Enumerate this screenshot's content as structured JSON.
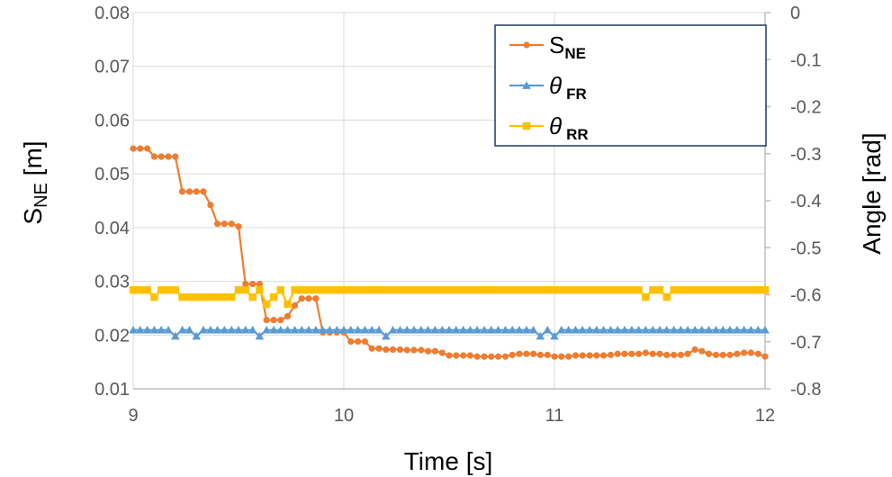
{
  "chart_data": {
    "type": "line",
    "xlabel": "Time [s]",
    "ylabel_left_main": "S",
    "ylabel_left_sub": "NE",
    "ylabel_left_unit": " [m]",
    "ylabel_right": "Angle [rad]",
    "xlim": [
      9,
      12
    ],
    "ylim_left": [
      0.01,
      0.08
    ],
    "ylim_right": [
      -0.8,
      0
    ],
    "x_ticks": [
      9,
      10,
      11,
      12
    ],
    "x_tick_labels": [
      "9",
      "10",
      "11",
      "12"
    ],
    "y_left_ticks": [
      0.01,
      0.02,
      0.03,
      0.04,
      0.05,
      0.06,
      0.07,
      0.08
    ],
    "y_left_tick_labels": [
      "0.01",
      "0.02",
      "0.03",
      "0.04",
      "0.05",
      "0.06",
      "0.07",
      "0.08"
    ],
    "y_right_ticks": [
      0,
      -0.1,
      -0.2,
      -0.3,
      -0.4,
      -0.5,
      -0.6,
      -0.7,
      -0.8
    ],
    "y_right_tick_labels": [
      "0",
      "-0.1",
      "-0.2",
      "-0.3",
      "-0.4",
      "-0.5",
      "-0.6",
      "-0.7",
      "-0.8"
    ],
    "grid": "horizontal",
    "legend_position": "top-right",
    "series": [
      {
        "name": "S",
        "name_sub": "NE",
        "axis": "left",
        "color": "#ED7D31",
        "marker": "circle",
        "x": [
          9.0,
          9.033,
          9.067,
          9.1,
          9.133,
          9.167,
          9.2,
          9.233,
          9.267,
          9.3,
          9.333,
          9.367,
          9.4,
          9.433,
          9.467,
          9.5,
          9.533,
          9.567,
          9.6,
          9.633,
          9.667,
          9.7,
          9.733,
          9.767,
          9.8,
          9.833,
          9.867,
          9.9,
          9.933,
          9.967,
          10.0,
          10.033,
          10.067,
          10.1,
          10.133,
          10.167,
          10.2,
          10.233,
          10.267,
          10.3,
          10.333,
          10.367,
          10.4,
          10.433,
          10.467,
          10.5,
          10.533,
          10.567,
          10.6,
          10.633,
          10.667,
          10.7,
          10.733,
          10.767,
          10.8,
          10.833,
          10.867,
          10.9,
          10.933,
          10.967,
          11.0,
          11.033,
          11.067,
          11.1,
          11.133,
          11.167,
          11.2,
          11.233,
          11.267,
          11.3,
          11.333,
          11.367,
          11.4,
          11.433,
          11.467,
          11.5,
          11.533,
          11.567,
          11.6,
          11.633,
          11.667,
          11.7,
          11.733,
          11.767,
          11.8,
          11.833,
          11.867,
          11.9,
          11.933,
          11.967,
          12.0
        ],
        "y": [
          0.0547,
          0.0547,
          0.0547,
          0.0532,
          0.0532,
          0.0532,
          0.0532,
          0.0467,
          0.0467,
          0.0467,
          0.0467,
          0.0442,
          0.0407,
          0.0407,
          0.0407,
          0.0402,
          0.0295,
          0.0295,
          0.0295,
          0.0228,
          0.0228,
          0.0228,
          0.0235,
          0.0255,
          0.0268,
          0.0268,
          0.0268,
          0.0205,
          0.0205,
          0.0205,
          0.0205,
          0.0188,
          0.0188,
          0.0188,
          0.0175,
          0.0175,
          0.0173,
          0.0173,
          0.0173,
          0.0172,
          0.0172,
          0.0172,
          0.017,
          0.017,
          0.0167,
          0.0162,
          0.0162,
          0.0162,
          0.0162,
          0.016,
          0.016,
          0.016,
          0.016,
          0.016,
          0.0163,
          0.0165,
          0.0165,
          0.0165,
          0.0163,
          0.0163,
          0.016,
          0.016,
          0.016,
          0.0162,
          0.0162,
          0.0162,
          0.0162,
          0.0162,
          0.0163,
          0.0165,
          0.0165,
          0.0165,
          0.0165,
          0.0167,
          0.0165,
          0.0165,
          0.0163,
          0.0163,
          0.0163,
          0.0165,
          0.0173,
          0.017,
          0.0165,
          0.0163,
          0.0163,
          0.0163,
          0.0165,
          0.0167,
          0.0167,
          0.0165,
          0.016
        ]
      },
      {
        "name": "θ",
        "name_sub": "FR",
        "axis": "right",
        "color": "#5B9BD5",
        "marker": "triangle",
        "x": [
          9.0,
          9.033,
          9.067,
          9.1,
          9.133,
          9.167,
          9.2,
          9.233,
          9.267,
          9.3,
          9.333,
          9.367,
          9.4,
          9.433,
          9.467,
          9.5,
          9.533,
          9.567,
          9.6,
          9.633,
          9.667,
          9.7,
          9.733,
          9.767,
          9.8,
          9.833,
          9.867,
          9.9,
          9.933,
          9.967,
          10.0,
          10.033,
          10.067,
          10.1,
          10.133,
          10.167,
          10.2,
          10.233,
          10.267,
          10.3,
          10.333,
          10.367,
          10.4,
          10.433,
          10.467,
          10.5,
          10.533,
          10.567,
          10.6,
          10.633,
          10.667,
          10.7,
          10.733,
          10.767,
          10.8,
          10.833,
          10.867,
          10.9,
          10.933,
          10.967,
          11.0,
          11.033,
          11.067,
          11.1,
          11.133,
          11.167,
          11.2,
          11.233,
          11.267,
          11.3,
          11.333,
          11.367,
          11.4,
          11.433,
          11.467,
          11.5,
          11.533,
          11.567,
          11.6,
          11.633,
          11.667,
          11.7,
          11.733,
          11.767,
          11.8,
          11.833,
          11.867,
          11.9,
          11.933,
          11.967,
          12.0
        ],
        "y": [
          -0.675,
          -0.675,
          -0.675,
          -0.675,
          -0.675,
          -0.675,
          -0.688,
          -0.675,
          -0.675,
          -0.688,
          -0.675,
          -0.675,
          -0.675,
          -0.675,
          -0.675,
          -0.675,
          -0.675,
          -0.675,
          -0.688,
          -0.675,
          -0.675,
          -0.675,
          -0.675,
          -0.675,
          -0.675,
          -0.675,
          -0.675,
          -0.675,
          -0.675,
          -0.675,
          -0.675,
          -0.675,
          -0.675,
          -0.675,
          -0.675,
          -0.675,
          -0.688,
          -0.675,
          -0.675,
          -0.675,
          -0.675,
          -0.675,
          -0.675,
          -0.675,
          -0.675,
          -0.675,
          -0.675,
          -0.675,
          -0.675,
          -0.675,
          -0.675,
          -0.675,
          -0.675,
          -0.675,
          -0.675,
          -0.675,
          -0.675,
          -0.675,
          -0.688,
          -0.675,
          -0.688,
          -0.675,
          -0.675,
          -0.675,
          -0.675,
          -0.675,
          -0.675,
          -0.675,
          -0.675,
          -0.675,
          -0.675,
          -0.675,
          -0.675,
          -0.675,
          -0.675,
          -0.675,
          -0.675,
          -0.675,
          -0.675,
          -0.675,
          -0.675,
          -0.675,
          -0.675,
          -0.675,
          -0.675,
          -0.675,
          -0.675,
          -0.675,
          -0.675,
          -0.675,
          -0.675
        ]
      },
      {
        "name": "θ",
        "name_sub": "RR",
        "axis": "right",
        "color": "#FFC000",
        "marker": "square",
        "x": [
          9.0,
          9.033,
          9.067,
          9.1,
          9.133,
          9.167,
          9.2,
          9.233,
          9.267,
          9.3,
          9.333,
          9.367,
          9.4,
          9.433,
          9.467,
          9.5,
          9.533,
          9.567,
          9.6,
          9.633,
          9.667,
          9.7,
          9.733,
          9.767,
          9.8,
          9.833,
          9.867,
          9.9,
          9.933,
          9.967,
          10.0,
          10.033,
          10.067,
          10.1,
          10.133,
          10.167,
          10.2,
          10.233,
          10.267,
          10.3,
          10.333,
          10.367,
          10.4,
          10.433,
          10.467,
          10.5,
          10.533,
          10.567,
          10.6,
          10.633,
          10.667,
          10.7,
          10.733,
          10.767,
          10.8,
          10.833,
          10.867,
          10.9,
          10.933,
          10.967,
          11.0,
          11.033,
          11.067,
          11.1,
          11.133,
          11.167,
          11.2,
          11.233,
          11.267,
          11.3,
          11.333,
          11.367,
          11.4,
          11.433,
          11.467,
          11.5,
          11.533,
          11.567,
          11.6,
          11.633,
          11.667,
          11.7,
          11.733,
          11.767,
          11.8,
          11.833,
          11.867,
          11.9,
          11.933,
          11.967,
          12.0
        ],
        "y": [
          -0.59,
          -0.59,
          -0.59,
          -0.605,
          -0.59,
          -0.59,
          -0.59,
          -0.605,
          -0.605,
          -0.605,
          -0.605,
          -0.605,
          -0.605,
          -0.605,
          -0.605,
          -0.59,
          -0.59,
          -0.605,
          -0.59,
          -0.62,
          -0.605,
          -0.59,
          -0.62,
          -0.59,
          -0.59,
          -0.59,
          -0.59,
          -0.59,
          -0.59,
          -0.59,
          -0.59,
          -0.59,
          -0.59,
          -0.59,
          -0.59,
          -0.59,
          -0.59,
          -0.59,
          -0.59,
          -0.59,
          -0.59,
          -0.59,
          -0.59,
          -0.59,
          -0.59,
          -0.59,
          -0.59,
          -0.59,
          -0.59,
          -0.59,
          -0.59,
          -0.59,
          -0.59,
          -0.59,
          -0.59,
          -0.59,
          -0.59,
          -0.59,
          -0.59,
          -0.59,
          -0.59,
          -0.59,
          -0.59,
          -0.59,
          -0.59,
          -0.59,
          -0.59,
          -0.59,
          -0.59,
          -0.59,
          -0.59,
          -0.59,
          -0.59,
          -0.605,
          -0.59,
          -0.59,
          -0.605,
          -0.59,
          -0.59,
          -0.59,
          -0.59,
          -0.59,
          -0.59,
          -0.59,
          -0.59,
          -0.59,
          -0.59,
          -0.59,
          -0.59,
          -0.59,
          -0.59
        ]
      }
    ]
  }
}
